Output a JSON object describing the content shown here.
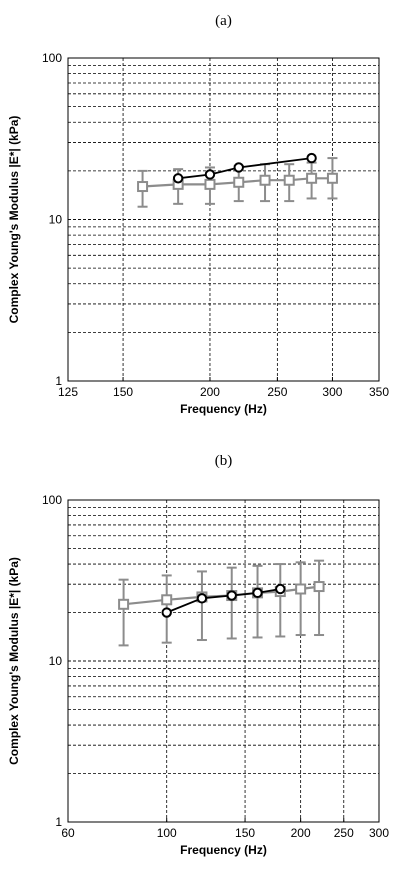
{
  "chart_data": [
    {
      "type": "line",
      "panel_label": "(a)",
      "xlabel": "Frequency (Hz)",
      "ylabel": "Complex Young's Modulus |E*| (kPa)",
      "x_scale": "log",
      "y_scale": "log",
      "xlim": [
        125,
        350
      ],
      "ylim": [
        1,
        100
      ],
      "x_ticks": [
        125,
        150,
        200,
        250,
        300,
        350
      ],
      "y_tick_labels": [
        1,
        10,
        100
      ],
      "grid": true,
      "series": [
        {
          "marker": "circle",
          "color": "#000000",
          "x": [
            180,
            200,
            220,
            280
          ],
          "y": [
            18,
            19,
            21,
            24
          ]
        },
        {
          "marker": "square",
          "color": "#8c8c8c",
          "x": [
            160,
            180,
            200,
            220,
            240,
            260,
            280,
            300
          ],
          "y": [
            16,
            16.5,
            16.5,
            17,
            17.5,
            17.5,
            18,
            18
          ],
          "y_lower": [
            12,
            12.5,
            12.5,
            13,
            13,
            13,
            13.5,
            13.5
          ],
          "y_upper": [
            20,
            20.5,
            21,
            21.5,
            22,
            22,
            22.5,
            24
          ]
        }
      ]
    },
    {
      "type": "line",
      "panel_label": "(b)",
      "xlabel": "Frequency (Hz)",
      "ylabel": "Complex Young's Modulus |E*| (kPa)",
      "x_scale": "log",
      "y_scale": "log",
      "xlim": [
        60,
        300
      ],
      "ylim": [
        1,
        100
      ],
      "x_ticks": [
        60,
        100,
        150,
        200,
        250,
        300
      ],
      "y_tick_labels": [
        1,
        10,
        100
      ],
      "grid": true,
      "series": [
        {
          "marker": "circle",
          "color": "#000000",
          "x": [
            100,
            120,
            140,
            160,
            180
          ],
          "y": [
            20,
            24.5,
            25.5,
            26.5,
            28
          ]
        },
        {
          "marker": "square",
          "color": "#8c8c8c",
          "x": [
            80,
            100,
            120,
            140,
            160,
            180,
            200,
            220
          ],
          "y": [
            22.5,
            24,
            25,
            25.5,
            26.5,
            27,
            28,
            29
          ],
          "y_lower": [
            12.5,
            13,
            13.5,
            13.8,
            14,
            14.2,
            14.5,
            14.5
          ],
          "y_upper": [
            32,
            34,
            36,
            38,
            39,
            40,
            41,
            42
          ]
        }
      ]
    }
  ]
}
